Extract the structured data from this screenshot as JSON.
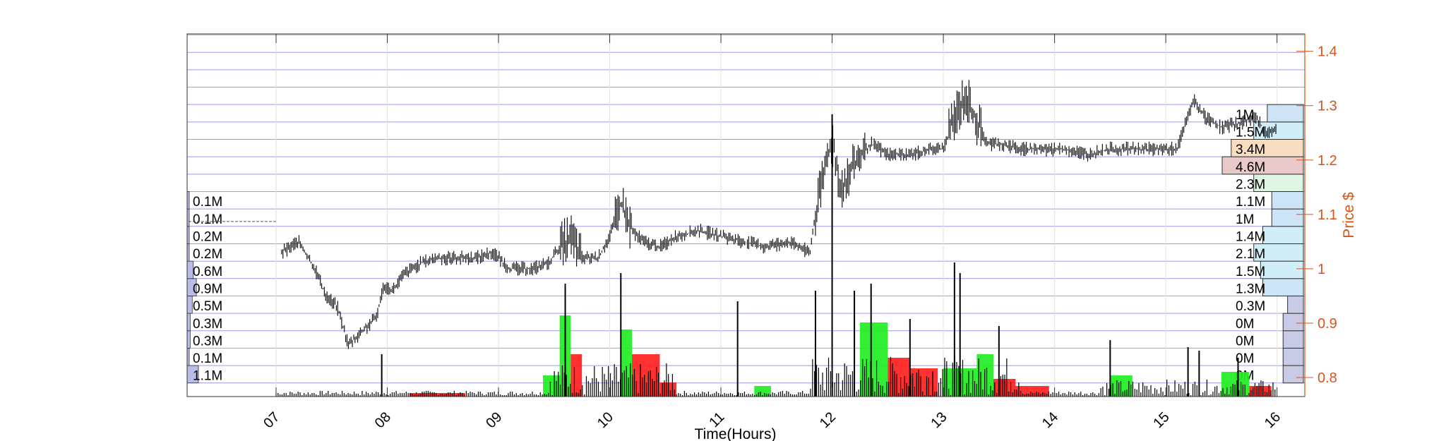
{
  "chart_data": {
    "type": "candlestick",
    "xlabel": "Time(Hours)",
    "ylabel": "Price $",
    "x_ticks": [
      "07",
      "08",
      "09",
      "10",
      "11",
      "12",
      "13",
      "14",
      "15",
      "16"
    ],
    "xlim": [
      6.2,
      16.25
    ],
    "y_ticks": [
      0.8,
      0.9,
      1,
      1.1,
      1.2,
      1.3,
      1.4
    ],
    "y_tick_labels": [
      "0.8",
      "0.9",
      "1",
      "1.1",
      "1.2",
      "1.3",
      "1.4"
    ],
    "ylim": [
      0.765,
      1.432
    ],
    "grid": true,
    "price_bins": [
      0.79,
      0.822,
      0.854,
      0.886,
      0.918,
      0.95,
      0.982,
      1.014,
      1.046,
      1.078,
      1.11,
      1.142,
      1.174,
      1.206,
      1.238,
      1.27,
      1.302,
      1.334,
      1.366,
      1.398,
      1.43
    ],
    "price_path": [
      [
        7.05,
        1.03
      ],
      [
        7.2,
        1.05
      ],
      [
        7.35,
        1.0
      ],
      [
        7.45,
        0.95
      ],
      [
        7.55,
        0.93
      ],
      [
        7.65,
        0.86
      ],
      [
        7.75,
        0.88
      ],
      [
        7.9,
        0.91
      ],
      [
        7.97,
        0.97
      ],
      [
        8.05,
        0.96
      ],
      [
        8.15,
        0.99
      ],
      [
        8.3,
        1.01
      ],
      [
        8.45,
        1.02
      ],
      [
        8.6,
        1.02
      ],
      [
        8.8,
        1.02
      ],
      [
        8.95,
        1.03
      ],
      [
        9.1,
        1.0
      ],
      [
        9.3,
        1.0
      ],
      [
        9.45,
        1.01
      ],
      [
        9.55,
        1.04
      ],
      [
        9.65,
        1.06
      ],
      [
        9.75,
        1.02
      ],
      [
        9.9,
        1.02
      ],
      [
        10.0,
        1.06
      ],
      [
        10.1,
        1.12
      ],
      [
        10.2,
        1.07
      ],
      [
        10.3,
        1.05
      ],
      [
        10.45,
        1.04
      ],
      [
        10.6,
        1.06
      ],
      [
        10.8,
        1.07
      ],
      [
        11.0,
        1.06
      ],
      [
        11.2,
        1.05
      ],
      [
        11.4,
        1.04
      ],
      [
        11.6,
        1.05
      ],
      [
        11.8,
        1.03
      ],
      [
        11.85,
        1.1
      ],
      [
        11.9,
        1.15
      ],
      [
        12.0,
        1.24
      ],
      [
        12.05,
        1.17
      ],
      [
        12.1,
        1.15
      ],
      [
        12.2,
        1.19
      ],
      [
        12.35,
        1.23
      ],
      [
        12.5,
        1.21
      ],
      [
        12.7,
        1.21
      ],
      [
        12.9,
        1.22
      ],
      [
        13.0,
        1.22
      ],
      [
        13.1,
        1.28
      ],
      [
        13.2,
        1.32
      ],
      [
        13.3,
        1.27
      ],
      [
        13.4,
        1.23
      ],
      [
        13.5,
        1.23
      ],
      [
        13.7,
        1.22
      ],
      [
        13.9,
        1.22
      ],
      [
        14.1,
        1.22
      ],
      [
        14.3,
        1.21
      ],
      [
        14.5,
        1.22
      ],
      [
        14.7,
        1.22
      ],
      [
        14.9,
        1.22
      ],
      [
        15.1,
        1.22
      ],
      [
        15.15,
        1.25
      ],
      [
        15.25,
        1.31
      ],
      [
        15.35,
        1.28
      ],
      [
        15.5,
        1.26
      ],
      [
        15.7,
        1.27
      ],
      [
        15.8,
        1.28
      ],
      [
        15.9,
        1.25
      ],
      [
        16.0,
        1.26
      ]
    ],
    "volume_spikes": [
      [
        7.95,
        60
      ],
      [
        9.6,
        160
      ],
      [
        10.1,
        175
      ],
      [
        11.15,
        135
      ],
      [
        11.85,
        150
      ],
      [
        12.0,
        400
      ],
      [
        12.2,
        150
      ],
      [
        12.35,
        160
      ],
      [
        12.7,
        110
      ],
      [
        13.1,
        190
      ],
      [
        13.15,
        175
      ],
      [
        13.5,
        100
      ],
      [
        14.5,
        80
      ],
      [
        15.2,
        70
      ],
      [
        15.3,
        65
      ],
      [
        15.65,
        55
      ]
    ],
    "flow_blocks": [
      {
        "x0": 9.4,
        "x1": 9.6,
        "h": 30,
        "dir": "buy"
      },
      {
        "x0": 9.55,
        "x1": 9.65,
        "h": 115,
        "dir": "buy"
      },
      {
        "x0": 9.65,
        "x1": 9.75,
        "h": 60,
        "dir": "sell"
      },
      {
        "x0": 10.1,
        "x1": 10.2,
        "h": 95,
        "dir": "buy"
      },
      {
        "x0": 10.2,
        "x1": 10.45,
        "h": 60,
        "dir": "sell"
      },
      {
        "x0": 10.45,
        "x1": 10.6,
        "h": 20,
        "dir": "sell"
      },
      {
        "x0": 11.3,
        "x1": 11.45,
        "h": 15,
        "dir": "buy"
      },
      {
        "x0": 12.25,
        "x1": 12.5,
        "h": 105,
        "dir": "buy"
      },
      {
        "x0": 12.5,
        "x1": 12.7,
        "h": 55,
        "dir": "sell"
      },
      {
        "x0": 12.7,
        "x1": 12.95,
        "h": 40,
        "dir": "sell"
      },
      {
        "x0": 13.0,
        "x1": 13.3,
        "h": 40,
        "dir": "buy"
      },
      {
        "x0": 13.3,
        "x1": 13.45,
        "h": 60,
        "dir": "buy"
      },
      {
        "x0": 13.45,
        "x1": 13.65,
        "h": 25,
        "dir": "sell"
      },
      {
        "x0": 13.65,
        "x1": 13.95,
        "h": 15,
        "dir": "sell"
      },
      {
        "x0": 14.5,
        "x1": 14.7,
        "h": 30,
        "dir": "buy"
      },
      {
        "x0": 15.5,
        "x1": 15.75,
        "h": 35,
        "dir": "buy"
      },
      {
        "x0": 15.75,
        "x1": 15.95,
        "h": 15,
        "dir": "sell"
      },
      {
        "x0": 8.2,
        "x1": 8.7,
        "h": 5,
        "dir": "sell"
      }
    ],
    "left_profile": {
      "labels": [
        "1.1M",
        "0.1M",
        "0.3M",
        "0.3M",
        "0.5M",
        "0.9M",
        "0.6M",
        "0.2M",
        "0.2M",
        "0.1M",
        "0.1M"
      ],
      "values_m": [
        1.1,
        0.1,
        0.3,
        0.3,
        0.5,
        0.9,
        0.6,
        0.2,
        0.2,
        0.1,
        0.1
      ]
    },
    "right_profile": {
      "labels": [
        "0M",
        "0M",
        "0M",
        "0M",
        "0.3M",
        "1.3M",
        "1.5M",
        "2.1M",
        "1.4M",
        "1M",
        "1.1M",
        "2.3M",
        "4.6M",
        "3.4M",
        "1.5M",
        "1M"
      ],
      "values_m": [
        0,
        0,
        0,
        0,
        0.3,
        1.3,
        1.5,
        2.1,
        1.4,
        1.0,
        1.1,
        2.3,
        4.6,
        3.4,
        1.5,
        1.0
      ],
      "bar_levels": [
        0.45,
        0.45,
        0.45,
        0.45,
        0.35,
        0.9,
        0.95,
        1.1,
        0.9,
        0.7,
        0.7,
        1.1,
        1.8,
        1.6,
        1.1,
        0.8
      ],
      "colors": [
        "#c9cbe6",
        "#c9cbe6",
        "#c9cbe6",
        "#c9cbe6",
        "#c9cbe6",
        "#cde3f6",
        "#cfeef8",
        "#cfeef8",
        "#cfeef8",
        "#cde3f6",
        "#cde3f6",
        "#dff5e3",
        "#e8c8c8",
        "#f8dcc0",
        "#cfeef8",
        "#cde3f6"
      ]
    }
  }
}
